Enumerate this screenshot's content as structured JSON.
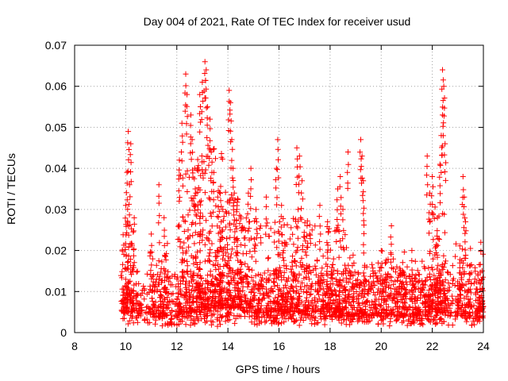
{
  "chart_data": {
    "type": "scatter",
    "title": "Day 004 of 2021, Rate Of TEC Index for receiver usud",
    "xlabel": "GPS time / hours",
    "ylabel": "ROTI / TECUs",
    "xlim": [
      8,
      24
    ],
    "ylim": [
      0,
      0.07
    ],
    "x_ticks": [
      8,
      10,
      12,
      14,
      16,
      18,
      20,
      22,
      24
    ],
    "x_tick_labels": [
      "8",
      "10",
      "12",
      "14",
      "16",
      "18",
      "20",
      "22",
      "24"
    ],
    "y_ticks": [
      0,
      0.01,
      0.02,
      0.03,
      0.04,
      0.05,
      0.06,
      0.07
    ],
    "y_tick_labels": [
      "0",
      "0.01",
      "0.02",
      "0.03",
      "0.04",
      "0.05",
      "0.06",
      "0.07"
    ],
    "grid": true,
    "marker": "plus",
    "color": "#ff0000",
    "baseline_band": {
      "x_start": 9.8,
      "x_end": 24.0,
      "y_low": 0.003,
      "y_high": 0.015
    },
    "spikes": [
      {
        "x": 10.1,
        "y": 0.049
      },
      {
        "x": 10.2,
        "y": 0.046
      },
      {
        "x": 10.05,
        "y": 0.039
      },
      {
        "x": 10.15,
        "y": 0.036
      },
      {
        "x": 10.0,
        "y": 0.031
      },
      {
        "x": 10.1,
        "y": 0.026
      },
      {
        "x": 11.3,
        "y": 0.036
      },
      {
        "x": 11.5,
        "y": 0.028
      },
      {
        "x": 11.0,
        "y": 0.024
      },
      {
        "x": 12.1,
        "y": 0.042
      },
      {
        "x": 12.2,
        "y": 0.051
      },
      {
        "x": 12.35,
        "y": 0.063
      },
      {
        "x": 12.4,
        "y": 0.058
      },
      {
        "x": 12.55,
        "y": 0.053
      },
      {
        "x": 12.6,
        "y": 0.047
      },
      {
        "x": 12.7,
        "y": 0.04
      },
      {
        "x": 12.75,
        "y": 0.034
      },
      {
        "x": 12.9,
        "y": 0.058
      },
      {
        "x": 13.0,
        "y": 0.061
      },
      {
        "x": 13.1,
        "y": 0.066
      },
      {
        "x": 13.15,
        "y": 0.064
      },
      {
        "x": 13.2,
        "y": 0.055
      },
      {
        "x": 13.3,
        "y": 0.052
      },
      {
        "x": 13.35,
        "y": 0.044
      },
      {
        "x": 13.45,
        "y": 0.039
      },
      {
        "x": 13.6,
        "y": 0.033
      },
      {
        "x": 13.8,
        "y": 0.03
      },
      {
        "x": 14.05,
        "y": 0.059
      },
      {
        "x": 14.1,
        "y": 0.056
      },
      {
        "x": 14.15,
        "y": 0.047
      },
      {
        "x": 14.2,
        "y": 0.04
      },
      {
        "x": 14.25,
        "y": 0.034
      },
      {
        "x": 14.35,
        "y": 0.03
      },
      {
        "x": 14.9,
        "y": 0.04
      },
      {
        "x": 14.8,
        "y": 0.034
      },
      {
        "x": 15.1,
        "y": 0.03
      },
      {
        "x": 15.5,
        "y": 0.033
      },
      {
        "x": 15.95,
        "y": 0.047
      },
      {
        "x": 15.9,
        "y": 0.04
      },
      {
        "x": 16.1,
        "y": 0.031
      },
      {
        "x": 16.7,
        "y": 0.045
      },
      {
        "x": 16.8,
        "y": 0.043
      },
      {
        "x": 16.9,
        "y": 0.037
      },
      {
        "x": 16.75,
        "y": 0.03
      },
      {
        "x": 17.1,
        "y": 0.026
      },
      {
        "x": 17.6,
        "y": 0.031
      },
      {
        "x": 17.9,
        "y": 0.027
      },
      {
        "x": 18.4,
        "y": 0.038
      },
      {
        "x": 18.3,
        "y": 0.035
      },
      {
        "x": 18.5,
        "y": 0.03
      },
      {
        "x": 18.7,
        "y": 0.044
      },
      {
        "x": 19.2,
        "y": 0.047
      },
      {
        "x": 19.25,
        "y": 0.043
      },
      {
        "x": 19.3,
        "y": 0.037
      },
      {
        "x": 19.3,
        "y": 0.029
      },
      {
        "x": 20.4,
        "y": 0.026
      },
      {
        "x": 21.2,
        "y": 0.02
      },
      {
        "x": 21.8,
        "y": 0.043
      },
      {
        "x": 21.9,
        "y": 0.034
      },
      {
        "x": 22.0,
        "y": 0.038
      },
      {
        "x": 22.2,
        "y": 0.028
      },
      {
        "x": 22.35,
        "y": 0.048
      },
      {
        "x": 22.4,
        "y": 0.053
      },
      {
        "x": 22.45,
        "y": 0.06
      },
      {
        "x": 22.4,
        "y": 0.064
      },
      {
        "x": 22.5,
        "y": 0.046
      },
      {
        "x": 22.3,
        "y": 0.041
      },
      {
        "x": 23.2,
        "y": 0.038
      },
      {
        "x": 23.25,
        "y": 0.033
      },
      {
        "x": 23.3,
        "y": 0.027
      },
      {
        "x": 23.9,
        "y": 0.022
      }
    ],
    "clusters": [
      {
        "x_center": 10.1,
        "x_spread": 0.25,
        "y_low": 0.005,
        "y_high": 0.028,
        "count": 90
      },
      {
        "x_center": 11.3,
        "x_spread": 0.35,
        "y_low": 0.004,
        "y_high": 0.022,
        "count": 70
      },
      {
        "x_center": 12.5,
        "x_spread": 0.5,
        "y_low": 0.005,
        "y_high": 0.04,
        "count": 160
      },
      {
        "x_center": 13.3,
        "x_spread": 0.5,
        "y_low": 0.006,
        "y_high": 0.045,
        "count": 170
      },
      {
        "x_center": 14.1,
        "x_spread": 0.45,
        "y_low": 0.006,
        "y_high": 0.036,
        "count": 160
      },
      {
        "x_center": 14.9,
        "x_spread": 0.4,
        "y_low": 0.005,
        "y_high": 0.028,
        "count": 90
      },
      {
        "x_center": 16.0,
        "x_spread": 0.5,
        "y_low": 0.005,
        "y_high": 0.028,
        "count": 110
      },
      {
        "x_center": 16.9,
        "x_spread": 0.4,
        "y_low": 0.005,
        "y_high": 0.03,
        "count": 100
      },
      {
        "x_center": 17.9,
        "x_spread": 0.5,
        "y_low": 0.005,
        "y_high": 0.026,
        "count": 110
      },
      {
        "x_center": 18.6,
        "x_spread": 0.4,
        "y_low": 0.004,
        "y_high": 0.026,
        "count": 80
      },
      {
        "x_center": 19.5,
        "x_spread": 0.5,
        "y_low": 0.004,
        "y_high": 0.018,
        "count": 70
      },
      {
        "x_center": 20.5,
        "x_spread": 0.5,
        "y_low": 0.004,
        "y_high": 0.02,
        "count": 80
      },
      {
        "x_center": 21.5,
        "x_spread": 0.4,
        "y_low": 0.004,
        "y_high": 0.018,
        "count": 60
      },
      {
        "x_center": 22.2,
        "x_spread": 0.35,
        "y_low": 0.005,
        "y_high": 0.032,
        "count": 110
      },
      {
        "x_center": 23.2,
        "x_spread": 0.35,
        "y_low": 0.004,
        "y_high": 0.022,
        "count": 70
      },
      {
        "x_center": 23.85,
        "x_spread": 0.15,
        "y_low": 0.004,
        "y_high": 0.02,
        "count": 40
      }
    ],
    "baseline_count": 1400
  }
}
